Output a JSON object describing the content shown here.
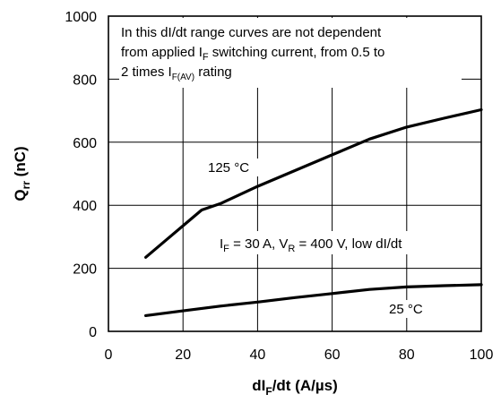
{
  "chart_data": {
    "type": "line",
    "xlabel": {
      "main": "dI",
      "sub": "F",
      "rest": "/dt (A/µs)"
    },
    "ylabel": {
      "main": "Q",
      "sub": "rr",
      "rest": " (nC)"
    },
    "xlim": [
      0,
      100
    ],
    "ylim": [
      0,
      1000
    ],
    "xticks": [
      "0",
      "20",
      "40",
      "60",
      "80",
      "100"
    ],
    "yticks": [
      "0",
      "200",
      "400",
      "600",
      "800",
      "1000"
    ],
    "grid": true,
    "series": [
      {
        "name": "125 °C",
        "x": [
          10,
          15,
          20,
          25,
          30,
          40,
          50,
          60,
          70,
          80,
          90,
          100
        ],
        "y": [
          235,
          285,
          335,
          385,
          405,
          460,
          510,
          560,
          610,
          648,
          676,
          703
        ]
      },
      {
        "name": "25 °C",
        "x": [
          10,
          20,
          30,
          40,
          50,
          60,
          70,
          80,
          90,
          100
        ],
        "y": [
          50,
          65,
          80,
          93,
          107,
          120,
          133,
          141,
          145,
          148
        ]
      }
    ],
    "annotations": {
      "note": {
        "line1": "In this dI/dt range curves are not dependent",
        "line2_a": "from applied I",
        "line2_sub": "F",
        "line2_b": " switching current, from 0.5 to",
        "line3_a": "2 times I",
        "line3_sub": "F(AV)",
        "line3_b": " rating"
      },
      "label_125": "125 °C",
      "label_25": "25 °C",
      "conditions": {
        "a": "I",
        "a_sub": "F",
        "b": " = 30 A, V",
        "b_sub": "R",
        "c": " = 400 V, low dI/dt"
      }
    }
  }
}
